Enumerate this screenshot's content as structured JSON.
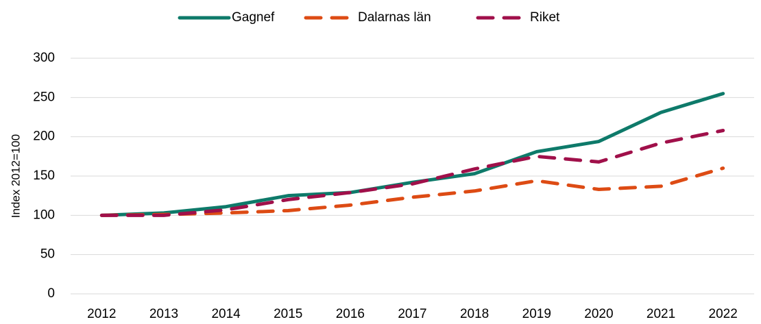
{
  "chart_data": {
    "type": "line",
    "y_label": "Index 2012=100",
    "categories": [
      "2012",
      "2013",
      "2014",
      "2015",
      "2016",
      "2017",
      "2018",
      "2019",
      "2020",
      "2021",
      "2022"
    ],
    "series": [
      {
        "name": "Gagnef",
        "color": "#0e7a6a",
        "dashed": false,
        "values": [
          100,
          103,
          111,
          125,
          129,
          142,
          153,
          181,
          194,
          231,
          255
        ]
      },
      {
        "name": "Dalarnas län",
        "color": "#dd4b14",
        "dashed": true,
        "values": [
          100,
          101,
          103,
          106,
          113,
          123,
          131,
          144,
          133,
          137,
          160
        ]
      },
      {
        "name": "Riket",
        "color": "#a0104a",
        "dashed": true,
        "values": [
          100,
          100,
          107,
          120,
          129,
          140,
          159,
          175,
          168,
          192,
          208
        ]
      }
    ],
    "ylim": [
      0,
      300
    ],
    "yticks": [
      0,
      50,
      100,
      150,
      200,
      250,
      300
    ],
    "grid": true,
    "legend": "top"
  }
}
